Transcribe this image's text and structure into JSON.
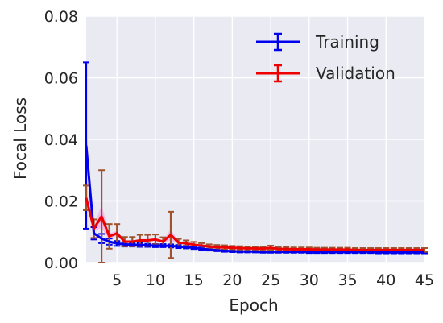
{
  "chart_data": {
    "type": "line",
    "xlabel": "Epoch",
    "ylabel": "Focal Loss",
    "xlim": [
      1,
      45
    ],
    "ylim": [
      0,
      0.08
    ],
    "xticks": [
      5,
      10,
      15,
      20,
      25,
      30,
      35,
      40,
      45
    ],
    "yticks": [
      "0.00",
      "0.02",
      "0.04",
      "0.06",
      "0.08"
    ],
    "grid": true,
    "legend_position": "top-right",
    "x": [
      1,
      2,
      3,
      4,
      5,
      6,
      7,
      8,
      9,
      10,
      11,
      12,
      13,
      14,
      15,
      16,
      17,
      18,
      19,
      20,
      21,
      22,
      23,
      24,
      25,
      26,
      27,
      28,
      29,
      30,
      31,
      32,
      33,
      34,
      35,
      36,
      37,
      38,
      39,
      40,
      41,
      42,
      43,
      44,
      45
    ],
    "series": [
      {
        "name": "Training",
        "color": "#0000ee",
        "values": [
          0.038,
          0.0095,
          0.0078,
          0.0068,
          0.0062,
          0.0059,
          0.0058,
          0.0057,
          0.0056,
          0.0055,
          0.0055,
          0.0054,
          0.0052,
          0.005,
          0.0048,
          0.0045,
          0.0042,
          0.004,
          0.0038,
          0.0037,
          0.0036,
          0.0036,
          0.0036,
          0.0035,
          0.0035,
          0.0035,
          0.0035,
          0.0035,
          0.0035,
          0.0034,
          0.0034,
          0.0034,
          0.0034,
          0.0034,
          0.0034,
          0.0034,
          0.0034,
          0.0034,
          0.0033,
          0.0033,
          0.0033,
          0.0033,
          0.0033,
          0.0033,
          0.0033
        ],
        "errors": [
          0.027,
          0.002,
          0.0015,
          0.001,
          0.0008,
          0.0007,
          0.0006,
          0.0006,
          0.0005,
          0.0005,
          0.0005,
          0.0005,
          0.0005,
          0.0004,
          0.0004,
          0.0004,
          0.0003,
          0.0003,
          0.0003,
          0.0003,
          0.0003,
          0.0003,
          0.0003,
          0.0003,
          0.0003,
          0.0003,
          0.0003,
          0.0003,
          0.0003,
          0.0003,
          0.0003,
          0.0003,
          0.0003,
          0.0003,
          0.0003,
          0.0003,
          0.0003,
          0.0003,
          0.0003,
          0.0003,
          0.0003,
          0.0003,
          0.0003,
          0.0003,
          0.0003
        ]
      },
      {
        "name": "Validation",
        "color": "#ee0000",
        "values": [
          0.021,
          0.011,
          0.015,
          0.0085,
          0.0095,
          0.0068,
          0.0068,
          0.0072,
          0.0072,
          0.0075,
          0.0068,
          0.009,
          0.0065,
          0.0062,
          0.0058,
          0.0055,
          0.0052,
          0.005,
          0.0049,
          0.0048,
          0.0047,
          0.0046,
          0.0046,
          0.0045,
          0.0048,
          0.0044,
          0.0044,
          0.0043,
          0.0043,
          0.0043,
          0.0042,
          0.0042,
          0.0042,
          0.0042,
          0.0042,
          0.0041,
          0.0041,
          0.0041,
          0.0041,
          0.0041,
          0.0041,
          0.0041,
          0.0041,
          0.0041,
          0.0041
        ],
        "errors": [
          0.004,
          0.003,
          0.015,
          0.004,
          0.003,
          0.0015,
          0.0015,
          0.0018,
          0.0018,
          0.0016,
          0.0014,
          0.0075,
          0.0012,
          0.001,
          0.0009,
          0.0008,
          0.0007,
          0.0007,
          0.0007,
          0.0006,
          0.0006,
          0.0006,
          0.0006,
          0.0006,
          0.0007,
          0.0006,
          0.0006,
          0.0006,
          0.0006,
          0.0006,
          0.0006,
          0.0006,
          0.0006,
          0.0006,
          0.0006,
          0.0006,
          0.0006,
          0.0006,
          0.0006,
          0.0006,
          0.0006,
          0.0006,
          0.0006,
          0.0006,
          0.0006
        ]
      }
    ],
    "errorbar_color": "#a0522d",
    "band_color": "#ff88dd"
  }
}
